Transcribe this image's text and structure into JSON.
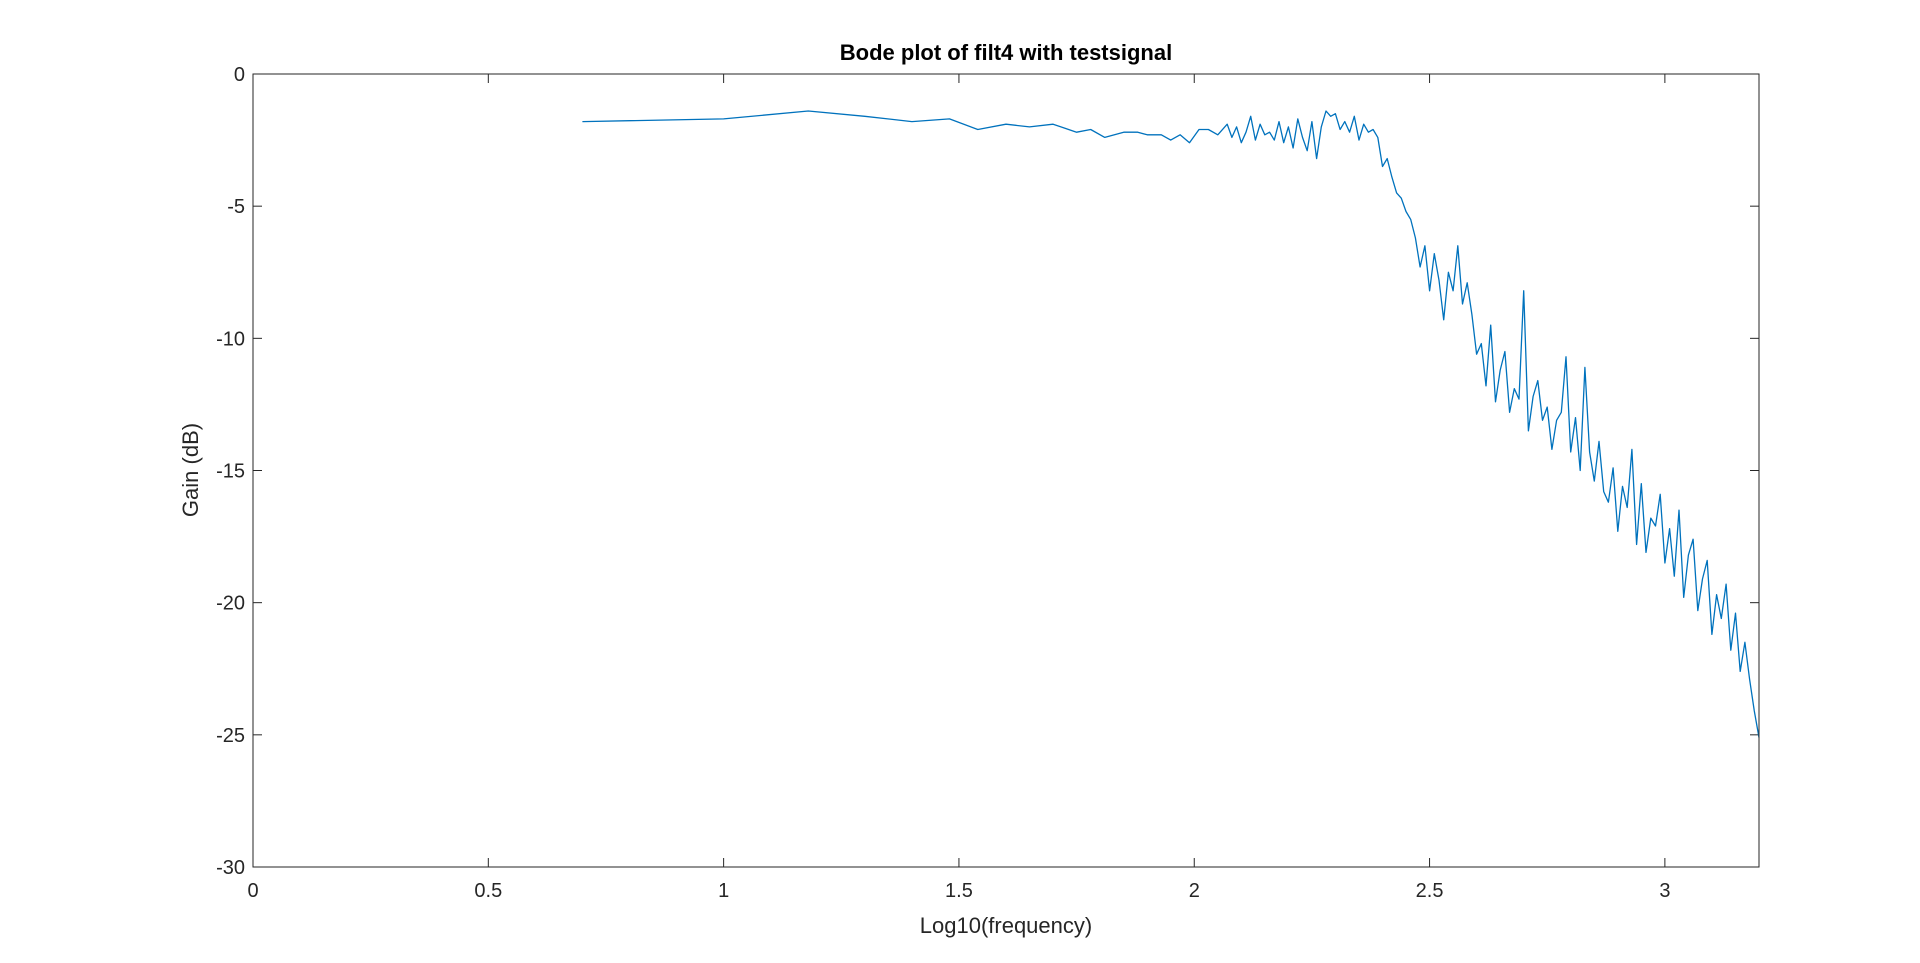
{
  "chart_data": {
    "type": "line",
    "title": "Bode plot of filt4 with testsignal",
    "xlabel": "Log10(frequency)",
    "ylabel": "Gain (dB)",
    "xlim": [
      0,
      3.2
    ],
    "ylim": [
      -30,
      0
    ],
    "x_ticks": [
      0,
      0.5,
      1,
      1.5,
      2,
      2.5,
      3
    ],
    "x_tick_labels": [
      "0",
      "0.5",
      "1",
      "1.5",
      "2",
      "2.5",
      "3"
    ],
    "y_ticks": [
      0,
      -5,
      -10,
      -15,
      -20,
      -25,
      -30
    ],
    "y_tick_labels": [
      "0",
      "-5",
      "-10",
      "-15",
      "-20",
      "-25",
      "-30"
    ],
    "grid": false,
    "box": true,
    "line_color": "#0072BD",
    "series": [
      {
        "x": [
          0.7,
          1.0,
          1.18,
          1.3,
          1.4,
          1.48,
          1.54,
          1.6,
          1.65,
          1.7,
          1.75,
          1.78,
          1.81,
          1.85,
          1.88,
          1.9,
          1.93,
          1.95,
          1.97,
          1.99,
          2.01,
          2.03,
          2.05,
          2.07,
          2.08,
          2.09,
          2.1,
          2.11,
          2.12,
          2.13,
          2.14,
          2.15,
          2.16,
          2.17,
          2.18,
          2.19,
          2.2,
          2.21,
          2.22,
          2.23,
          2.24,
          2.25,
          2.26,
          2.27,
          2.28,
          2.29,
          2.3,
          2.31,
          2.32,
          2.33,
          2.34,
          2.35,
          2.36,
          2.37,
          2.38,
          2.39,
          2.4,
          2.41,
          2.42,
          2.43,
          2.44,
          2.45,
          2.46,
          2.47,
          2.48,
          2.49,
          2.5,
          2.51,
          2.52,
          2.53,
          2.54,
          2.55,
          2.56,
          2.57,
          2.58,
          2.59,
          2.6,
          2.61,
          2.62,
          2.63,
          2.64,
          2.65,
          2.66,
          2.67,
          2.68,
          2.69,
          2.7,
          2.71,
          2.72,
          2.73,
          2.74,
          2.75,
          2.76,
          2.77,
          2.78,
          2.79,
          2.8,
          2.81,
          2.82,
          2.83,
          2.84,
          2.85,
          2.86,
          2.87,
          2.88,
          2.89,
          2.9,
          2.91,
          2.92,
          2.93,
          2.94,
          2.95,
          2.96,
          2.97,
          2.98,
          2.99,
          3.0,
          3.01,
          3.02,
          3.03,
          3.04,
          3.05,
          3.06,
          3.07,
          3.08,
          3.09,
          3.1,
          3.11,
          3.12,
          3.13,
          3.14,
          3.15,
          3.16,
          3.17,
          3.18,
          3.19,
          3.2
        ],
        "y": [
          -1.8,
          -1.7,
          -1.4,
          -1.6,
          -1.8,
          -1.7,
          -2.1,
          -1.9,
          -2.0,
          -1.9,
          -2.2,
          -2.1,
          -2.4,
          -2.2,
          -2.2,
          -2.3,
          -2.3,
          -2.5,
          -2.3,
          -2.6,
          -2.1,
          -2.1,
          -2.3,
          -1.9,
          -2.4,
          -2.0,
          -2.6,
          -2.2,
          -1.6,
          -2.5,
          -1.9,
          -2.3,
          -2.2,
          -2.5,
          -1.8,
          -2.6,
          -2.0,
          -2.8,
          -1.7,
          -2.4,
          -2.9,
          -1.8,
          -3.2,
          -2.0,
          -1.4,
          -1.6,
          -1.5,
          -2.1,
          -1.8,
          -2.2,
          -1.6,
          -2.5,
          -1.9,
          -2.2,
          -2.1,
          -2.4,
          -3.5,
          -3.2,
          -3.9,
          -4.5,
          -4.7,
          -5.2,
          -5.5,
          -6.2,
          -7.3,
          -6.5,
          -8.2,
          -6.8,
          -7.8,
          -9.3,
          -7.5,
          -8.2,
          -6.5,
          -8.7,
          -7.9,
          -9.1,
          -10.6,
          -10.2,
          -11.8,
          -9.5,
          -12.4,
          -11.2,
          -10.5,
          -12.8,
          -11.9,
          -12.3,
          -8.2,
          -13.5,
          -12.2,
          -11.6,
          -13.1,
          -12.6,
          -14.2,
          -13.1,
          -12.8,
          -10.7,
          -14.3,
          -13.0,
          -15.0,
          -11.1,
          -14.3,
          -15.4,
          -13.9,
          -15.8,
          -16.2,
          -14.9,
          -17.3,
          -15.6,
          -16.4,
          -14.2,
          -17.8,
          -15.5,
          -18.1,
          -16.8,
          -17.1,
          -15.9,
          -18.5,
          -17.2,
          -19.0,
          -16.5,
          -19.8,
          -18.2,
          -17.6,
          -20.3,
          -19.1,
          -18.4,
          -21.2,
          -19.7,
          -20.6,
          -19.3,
          -21.8,
          -20.4,
          -22.6,
          -21.5,
          -22.9,
          -24.1,
          -25.1
        ]
      }
    ]
  }
}
